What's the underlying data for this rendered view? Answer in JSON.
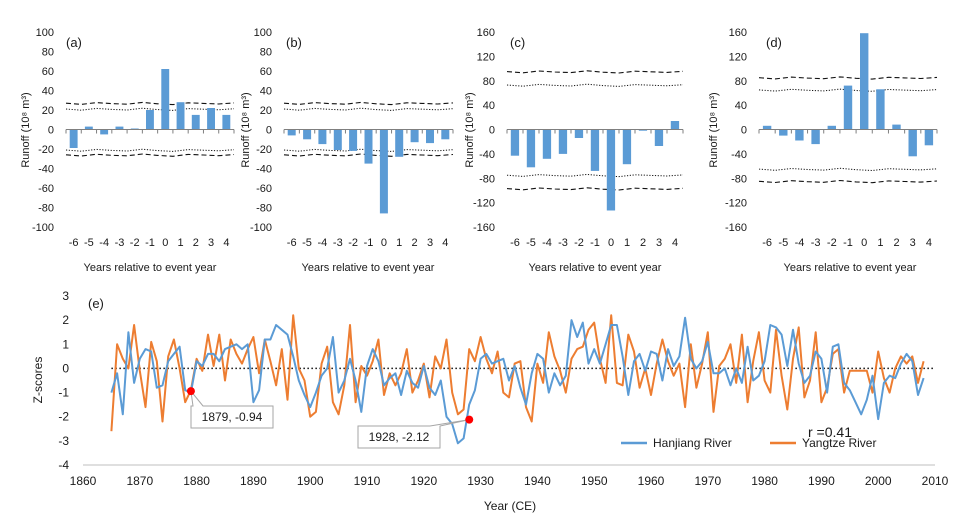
{
  "chart_data": [
    {
      "panel": "(a)",
      "type": "bar",
      "ylabel": "Runoff (10⁸ m³)",
      "xlabel": "Years relative to event year",
      "categories": [
        "-6",
        "-5",
        "-4",
        "-3",
        "-2",
        "-1",
        "0",
        "1",
        "2",
        "3",
        "4"
      ],
      "values": [
        -19,
        3,
        -5,
        3,
        1,
        20,
        62,
        28,
        15,
        22,
        15
      ],
      "ylim": [
        -100,
        100
      ],
      "yticks": [
        -100,
        -80,
        -60,
        -40,
        -20,
        0,
        20,
        40,
        60,
        80,
        100
      ],
      "bounds": {
        "upper_dashed": 27,
        "upper_dotted": 21,
        "lower_dotted": -21,
        "lower_dashed": -26
      }
    },
    {
      "panel": "(b)",
      "type": "bar",
      "ylabel": "Runoff (10⁸ m³)",
      "xlabel": "Years relative to event year",
      "categories": [
        "-6",
        "-5",
        "-4",
        "-3",
        "-2",
        "-1",
        "0",
        "1",
        "2",
        "3",
        "4"
      ],
      "values": [
        -6,
        -10,
        -15,
        -21,
        -22,
        -35,
        -86,
        -28,
        -13,
        -14,
        -10
      ],
      "ylim": [
        -100,
        100
      ],
      "yticks": [
        -100,
        -80,
        -60,
        -40,
        -20,
        0,
        20,
        40,
        60,
        80,
        100
      ],
      "bounds": {
        "upper_dashed": 27,
        "upper_dotted": 21,
        "lower_dotted": -21,
        "lower_dashed": -26
      }
    },
    {
      "panel": "(c)",
      "type": "bar",
      "ylabel": "Runoff (10⁸ m³)",
      "xlabel": "Years relative to event year",
      "categories": [
        "-6",
        "-5",
        "-4",
        "-3",
        "-2",
        "-1",
        "0",
        "1",
        "2",
        "3",
        "4"
      ],
      "values": [
        -43,
        -62,
        -48,
        -40,
        -14,
        -68,
        -133,
        -57,
        -2,
        -27,
        14
      ],
      "ylim": [
        -160,
        160
      ],
      "yticks": [
        -160,
        -120,
        -80,
        -40,
        0,
        40,
        80,
        120,
        160
      ],
      "bounds": {
        "upper_dashed": 95,
        "upper_dotted": 73,
        "lower_dotted": -75,
        "lower_dashed": -97
      }
    },
    {
      "panel": "(d)",
      "type": "bar",
      "ylabel": "Runoff (10⁸ m³)",
      "xlabel": "Years relative to event year",
      "categories": [
        "-6",
        "-5",
        "-4",
        "-3",
        "-2",
        "-1",
        "0",
        "1",
        "2",
        "3",
        "4"
      ],
      "values": [
        6,
        -10,
        -18,
        -24,
        6,
        72,
        158,
        66,
        8,
        -44,
        -26
      ],
      "ylim": [
        -160,
        160
      ],
      "yticks": [
        -160,
        -120,
        -80,
        -40,
        0,
        40,
        80,
        120,
        160
      ],
      "bounds": {
        "upper_dashed": 85,
        "upper_dotted": 65,
        "lower_dotted": -65,
        "lower_dashed": -85
      }
    },
    {
      "panel": "(e)",
      "type": "line",
      "xlabel": "Year (CE)",
      "ylabel": "Z-scores",
      "xlim": [
        1860,
        2010
      ],
      "ylim": [
        -4,
        3
      ],
      "xticks": [
        1860,
        1870,
        1880,
        1890,
        1900,
        1910,
        1920,
        1930,
        1940,
        1950,
        1960,
        1970,
        1980,
        1990,
        2000,
        2010
      ],
      "yticks": [
        -4,
        -3,
        -2,
        -1,
        0,
        1,
        2,
        3
      ],
      "x_start": 1865,
      "series": [
        {
          "name": "Hanjiang River",
          "color": "#5b9bd5",
          "values": [
            -1.0,
            -0.2,
            -1.9,
            1.5,
            -0.6,
            0.4,
            0.8,
            0.7,
            -0.8,
            -0.7,
            0.3,
            0.6,
            0.9,
            -0.9,
            -1.0,
            0.3,
            0.1,
            0.6,
            0.6,
            0.3,
            0.8,
            0.9,
            1.0,
            0.8,
            1.0,
            -1.4,
            -0.9,
            1.2,
            1.2,
            1.8,
            1.6,
            1.4,
            0.5,
            -0.5,
            -1.1,
            -1.6,
            -1.0,
            -0.3,
            0.0,
            1.3,
            -1.0,
            -0.5,
            0.4,
            -0.5,
            -1.8,
            0.1,
            0.8,
            0.3,
            -0.7,
            -0.4,
            -0.2,
            -1.1,
            -0.1,
            -0.6,
            -0.8,
            0.1,
            -0.8,
            -1.1,
            -0.5,
            -2.0,
            -2.3,
            -3.1,
            -2.9,
            -1.5,
            -0.9,
            0.4,
            0.6,
            0.2,
            0.3,
            0.4,
            -0.5,
            0.1,
            -0.8,
            -1.5,
            -0.2,
            0.6,
            0.4,
            -1.0,
            -0.2,
            -0.7,
            -0.3,
            2.0,
            1.3,
            1.9,
            0.2,
            0.8,
            0.2,
            1.0,
            1.8,
            1.8,
            0.5,
            -1.1,
            0.3,
            0.6,
            -0.1,
            0.7,
            0.6,
            -0.5,
            0.8,
            0.1,
            0.5,
            2.1,
            0.4,
            0.0,
            0.3,
            1.1,
            -0.2,
            -0.2,
            0.0,
            -0.7,
            0.0,
            -0.6,
            0.9,
            -0.5,
            -0.3,
            0.3,
            1.8,
            1.7,
            1.4,
            0.1,
            1.6,
            0.2,
            -0.6,
            -0.3,
            0.7,
            0.4,
            -1.0,
            0.9,
            1.0,
            -0.6,
            -0.9,
            -1.4,
            -1.9,
            -1.3,
            -0.3,
            -2.1,
            -0.6,
            -0.3,
            -0.4,
            0.2,
            0.6,
            0.3,
            -1.1,
            -0.4
          ]
        },
        {
          "name": "Yangtze River",
          "color": "#ed7d31",
          "values": [
            -2.6,
            1.0,
            0.4,
            0.0,
            1.8,
            -0.1,
            -1.6,
            1.1,
            0.3,
            -2.2,
            0.5,
            1.2,
            0.0,
            -1.4,
            -0.9,
            0.4,
            -0.1,
            1.4,
            0.1,
            1.4,
            -0.5,
            1.2,
            0.6,
            0.2,
            0.8,
            1.3,
            -0.2,
            1.2,
            0.3,
            -0.7,
            0.8,
            -1.3,
            2.2,
            0.0,
            -0.5,
            -2.0,
            -1.8,
            0.2,
            0.9,
            -1.4,
            -1.9,
            -0.7,
            1.8,
            -1.4,
            0.1,
            -0.3,
            0.3,
            1.2,
            -1.1,
            -0.2,
            -0.7,
            -0.2,
            0.8,
            -1.0,
            -0.5,
            0.2,
            -1.2,
            0.5,
            0.0,
            1.2,
            -1.0,
            -1.9,
            -1.7,
            0.8,
            0.3,
            1.3,
            0.4,
            -0.2,
            0.7,
            -1.0,
            -1.2,
            0.2,
            0.3,
            -1.6,
            -2.2,
            0.2,
            -0.6,
            1.5,
            0.5,
            -0.1,
            -1.0,
            0.4,
            0.8,
            0.9,
            1.6,
            1.9,
            0.4,
            -0.6,
            2.2,
            -0.6,
            -0.7,
            1.4,
            0.7,
            -0.8,
            0.0,
            -1.1,
            0.2,
            1.2,
            0.3,
            -0.3,
            0.2,
            -1.6,
            1.0,
            -0.8,
            0.2,
            1.5,
            -1.8,
            0.1,
            0.4,
            1.0,
            -0.6,
            1.4,
            -1.4,
            0.3,
            1.5,
            -0.5,
            -1.0,
            1.6,
            -0.3,
            -1.7,
            0.4,
            1.7,
            -1.2,
            -0.5,
            1.5,
            -1.4,
            -0.8,
            0.6,
            0.8,
            -1.0,
            -0.1,
            -0.1,
            -0.1,
            -0.1,
            -1.0,
            0.7,
            -0.4,
            -1.0,
            0.0,
            0.5,
            0.2,
            0.5,
            -0.6,
            0.3
          ]
        }
      ],
      "annotations": [
        {
          "label": "1879, -0.94",
          "x": 1879,
          "y": -0.94
        },
        {
          "label": "1928, -2.12",
          "x": 1928,
          "y": -2.12
        }
      ],
      "correlation_text": "r =0.41"
    }
  ]
}
